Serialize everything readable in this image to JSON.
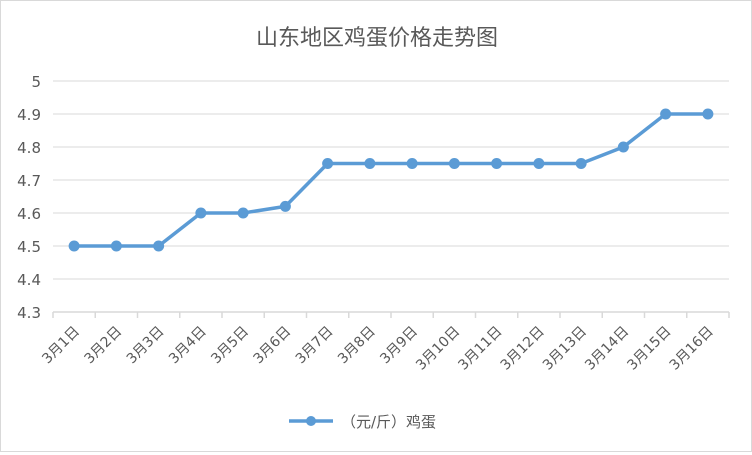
{
  "chart_data": {
    "type": "line",
    "title": "山东地区鸡蛋价格走势图",
    "xlabel": "",
    "ylabel": "",
    "categories": [
      "3月1日",
      "3月2日",
      "3月3日",
      "3月4日",
      "3月5日",
      "3月6日",
      "3月7日",
      "3月8日",
      "3月9日",
      "3月10日",
      "3月11日",
      "3月12日",
      "3月13日",
      "3月14日",
      "3月15日",
      "3月16日"
    ],
    "series": [
      {
        "name": "（元/斤）鸡蛋",
        "values": [
          4.5,
          4.5,
          4.5,
          4.6,
          4.6,
          4.62,
          4.75,
          4.75,
          4.75,
          4.75,
          4.75,
          4.75,
          4.75,
          4.8,
          4.9,
          4.9
        ],
        "color": "#5b9bd5"
      }
    ],
    "ylim": [
      4.3,
      5
    ],
    "yticks": [
      "4.3",
      "4.4",
      "4.5",
      "4.6",
      "4.7",
      "4.8",
      "4.9",
      "5"
    ],
    "grid": true,
    "legend": "bottom"
  }
}
